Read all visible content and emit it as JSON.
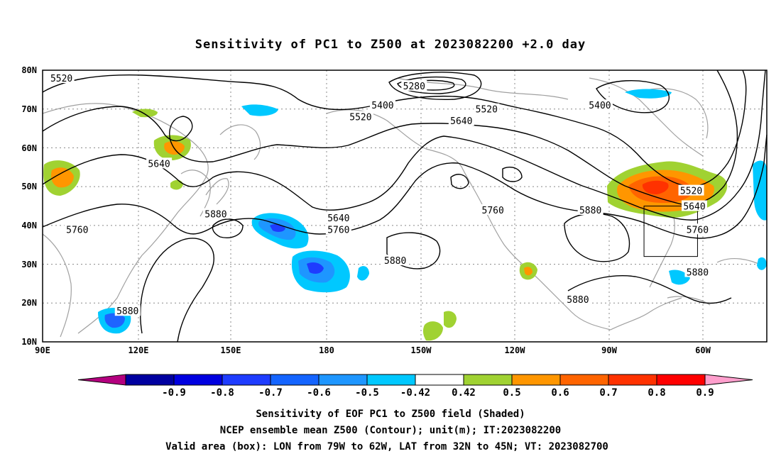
{
  "title": "Sensitivity of PC1 to Z500 at 2023082200 +2.0 day",
  "lat_ticks": [
    "80N",
    "70N",
    "60N",
    "50N",
    "40N",
    "30N",
    "20N",
    "10N"
  ],
  "lon_ticks": [
    "90E",
    "120E",
    "150E",
    "180",
    "150W",
    "120W",
    "90W",
    "60W"
  ],
  "contour_labels": [
    {
      "text": "5520",
      "lon": 96,
      "lat": 78
    },
    {
      "text": "5280",
      "lon": -152,
      "lat": 76
    },
    {
      "text": "5400",
      "lon": -162,
      "lat": 71
    },
    {
      "text": "5520",
      "lon": -129,
      "lat": 70
    },
    {
      "text": "5400",
      "lon": -93,
      "lat": 71
    },
    {
      "text": "5520",
      "lon": -169,
      "lat": 68
    },
    {
      "text": "5640",
      "lon": -137,
      "lat": 67
    },
    {
      "text": "5640",
      "lon": 127,
      "lat": 56
    },
    {
      "text": "5880",
      "lon": 145,
      "lat": 43
    },
    {
      "text": "5760",
      "lon": 101,
      "lat": 39
    },
    {
      "text": "5640",
      "lon": -176,
      "lat": 42
    },
    {
      "text": "5760",
      "lon": -176,
      "lat": 39
    },
    {
      "text": "5760",
      "lon": -127,
      "lat": 44
    },
    {
      "text": "5880",
      "lon": -96,
      "lat": 44
    },
    {
      "text": "5520",
      "lon": -64,
      "lat": 49
    },
    {
      "text": "5640",
      "lon": -63,
      "lat": 45
    },
    {
      "text": "5760",
      "lon": -62,
      "lat": 39
    },
    {
      "text": "5880",
      "lon": -158,
      "lat": 31
    },
    {
      "text": "5880",
      "lon": -62,
      "lat": 28
    },
    {
      "text": "5880",
      "lon": -100,
      "lat": 21
    },
    {
      "text": "5880",
      "lon": 117,
      "lat": 18
    }
  ],
  "valid_box": {
    "lon_min": -79,
    "lon_max": -62,
    "lat_min": 32,
    "lat_max": 45
  },
  "colorbar": {
    "tick_labels": [
      "-0.9",
      "-0.8",
      "-0.7",
      "-0.6",
      "-0.5",
      "-0.42",
      "0.42",
      "0.5",
      "0.6",
      "0.7",
      "0.8",
      "0.9"
    ],
    "colors": [
      "#0000a0",
      "#0000e0",
      "#1e3cff",
      "#1464ff",
      "#1e96ff",
      "#00c8ff",
      "#ffffff",
      "#a0d232",
      "#ff9600",
      "#ff6400",
      "#ff3200",
      "#ff0000"
    ],
    "low_extend_color": "#b4007f",
    "high_extend_color": "#ff9fcd"
  },
  "captions": {
    "line1": "Sensitivity of EOF PC1 to Z500 field (Shaded)",
    "line2": "NCEP ensemble mean Z500 (Contour); unit(m); IT:2023082200",
    "line3": "Valid area (box): LON from 79W to 62W, LAT from 32N to 45N; VT: 2023082700"
  }
}
